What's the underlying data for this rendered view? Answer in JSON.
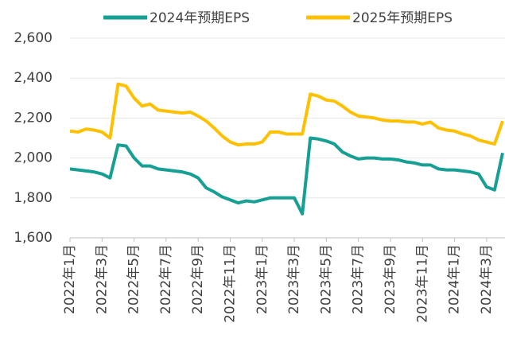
{
  "chart_data": {
    "type": "line",
    "categories": [
      "2022年1月",
      null,
      null,
      null,
      "2022年3月",
      null,
      null,
      null,
      "2022年5月",
      null,
      null,
      null,
      "2022年7月",
      null,
      null,
      null,
      "2022年9月",
      null,
      null,
      null,
      "2022年11月",
      null,
      null,
      null,
      "2023年1月",
      null,
      null,
      null,
      "2023年3月",
      null,
      null,
      null,
      "2023年5月",
      null,
      null,
      null,
      "2023年7月",
      null,
      null,
      null,
      "2023年9月",
      null,
      null,
      null,
      "2023年11月",
      null,
      null,
      null,
      "2024年1月",
      null,
      null,
      null,
      "2024年3月",
      null,
      null
    ],
    "series": [
      {
        "name": "2024年预期EPS",
        "color": "#16a093",
        "values": [
          1945,
          1940,
          1935,
          1930,
          1920,
          1900,
          2065,
          2060,
          2000,
          1960,
          1960,
          1945,
          1940,
          1935,
          1930,
          1920,
          1900,
          1850,
          1830,
          1805,
          1790,
          1775,
          1785,
          1780,
          1790,
          1800,
          1800,
          1800,
          1800,
          1720,
          2100,
          2095,
          2085,
          2070,
          2030,
          2010,
          1995,
          2000,
          2000,
          1995,
          1995,
          1990,
          1980,
          1975,
          1965,
          1965,
          1945,
          1940,
          1940,
          1935,
          1930,
          1920,
          1855,
          1840,
          2025
        ]
      },
      {
        "name": "2025年预期EPS",
        "color": "#ffc000",
        "values": [
          2135,
          2130,
          2145,
          2140,
          2130,
          2100,
          2370,
          2360,
          2300,
          2260,
          2270,
          2240,
          2235,
          2230,
          2225,
          2230,
          2210,
          2185,
          2150,
          2110,
          2080,
          2065,
          2070,
          2070,
          2080,
          2130,
          2130,
          2120,
          2120,
          2120,
          2320,
          2310,
          2290,
          2285,
          2260,
          2230,
          2210,
          2205,
          2200,
          2190,
          2185,
          2185,
          2180,
          2180,
          2170,
          2180,
          2150,
          2140,
          2135,
          2120,
          2110,
          2090,
          2080,
          2070,
          2185
        ]
      }
    ],
    "ylim": [
      1600,
      2600
    ],
    "yticks": [
      {
        "value": 1600,
        "label": "1,600"
      },
      {
        "value": 1800,
        "label": "1,800"
      },
      {
        "value": 2000,
        "label": "2,000"
      },
      {
        "value": 2200,
        "label": "2,200"
      },
      {
        "value": 2400,
        "label": "2,400"
      },
      {
        "value": 2600,
        "label": "2,600"
      }
    ],
    "grid": true
  }
}
